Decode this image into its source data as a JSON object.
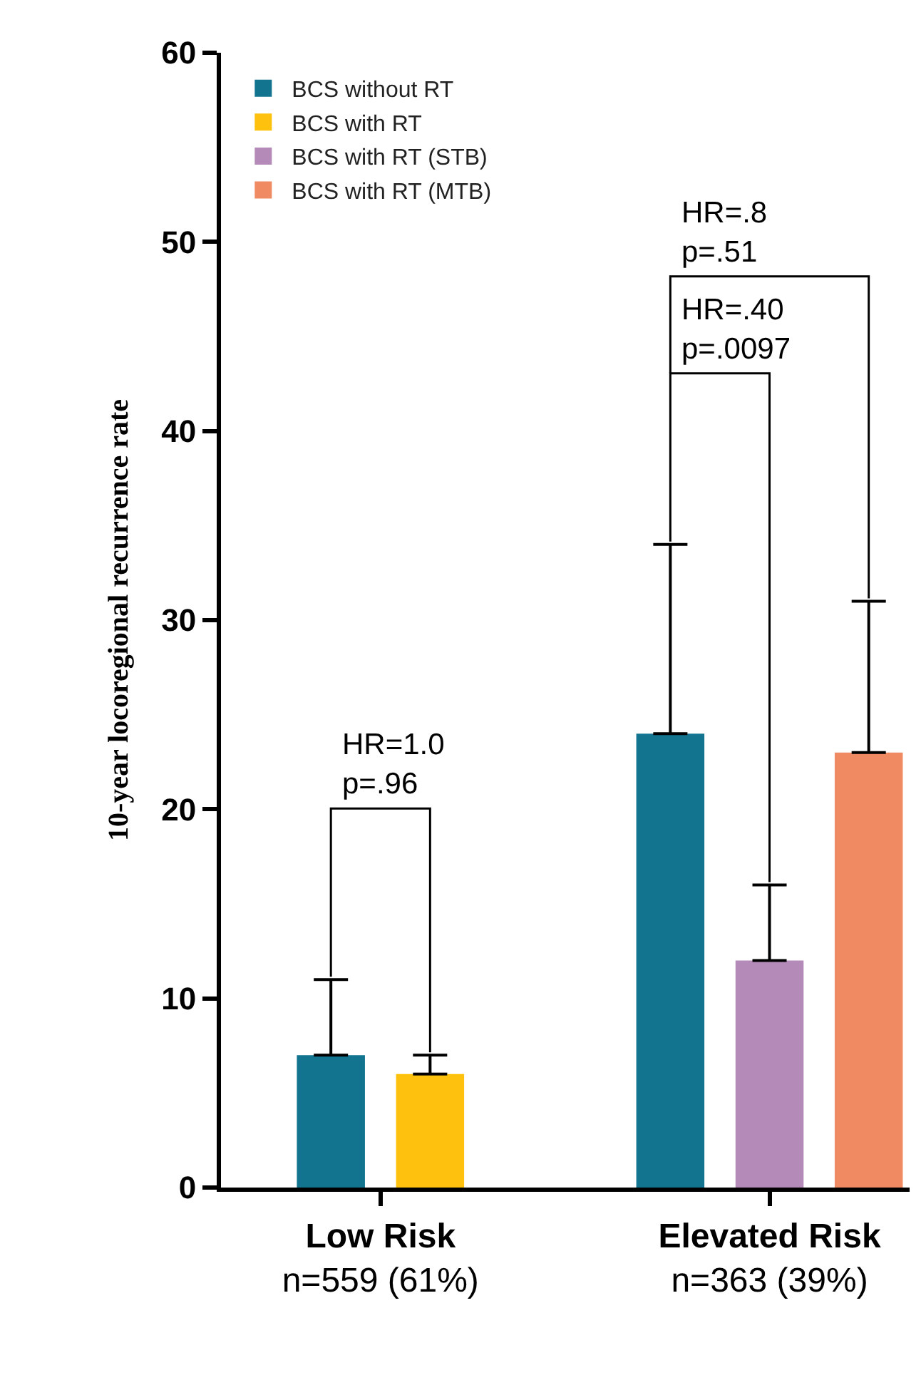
{
  "chart_data": {
    "type": "bar",
    "ylabel": "10-year locoregional recurrence rate",
    "categories": [
      "Low Risk\nn=559 (61%)",
      "Elevated Risk\nn=363 (39%)"
    ],
    "series": [
      {
        "name": "BCS without RT",
        "color": "#13748f",
        "values": [
          7,
          24
        ],
        "errors": [
          [
            7,
            11
          ],
          [
            24,
            34
          ]
        ]
      },
      {
        "name": "BCS with RT",
        "color": "#fdc10e",
        "values": [
          6,
          null
        ],
        "errors": [
          [
            6,
            7
          ],
          null
        ]
      },
      {
        "name": "BCS with RT (STB)",
        "color": "#b48ab8",
        "values": [
          null,
          12
        ],
        "errors": [
          null,
          [
            12,
            16
          ]
        ]
      },
      {
        "name": "BCS with RT (MTB)",
        "color": "#ef8a62",
        "values": [
          null,
          23
        ],
        "errors": [
          null,
          [
            23,
            31
          ]
        ]
      }
    ],
    "ylim": [
      0,
      60
    ],
    "yticks": [
      0,
      10,
      20,
      30,
      40,
      50,
      60
    ],
    "grid": false,
    "legend": "top left",
    "annotations": [
      "HR=1.0\np=.96",
      "HR=.40\np=.0097",
      "HR=.8\np=.51"
    ]
  }
}
